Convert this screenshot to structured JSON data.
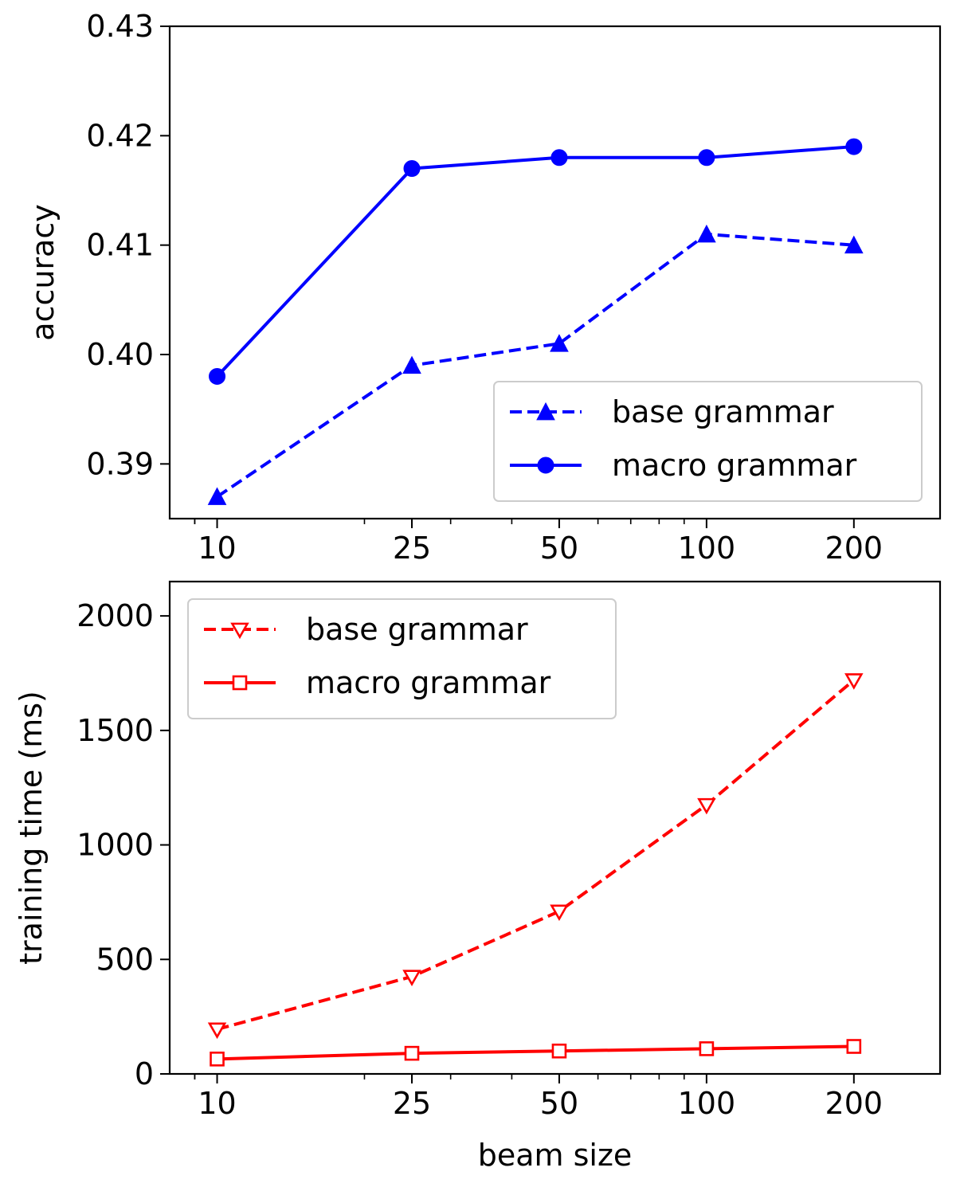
{
  "chart_data": [
    {
      "type": "line",
      "xscale": "log",
      "x": [
        10,
        25,
        50,
        100,
        200
      ],
      "xtick_labels": [
        "10",
        "25",
        "50",
        "100",
        "200"
      ],
      "xlim": [
        8,
        300
      ],
      "ylim": [
        0.385,
        0.43
      ],
      "yticks": [
        0.39,
        0.4,
        0.41,
        0.42,
        0.43
      ],
      "ytick_labels": [
        "0.39",
        "0.40",
        "0.41",
        "0.42",
        "0.43"
      ],
      "xlabel": "",
      "ylabel": "accuracy",
      "legend_position": "lower-right",
      "series": [
        {
          "name": "base grammar",
          "values": [
            0.387,
            0.399,
            0.401,
            0.411,
            0.41
          ],
          "color": "#0000ff",
          "linestyle": "dashed",
          "marker": "triangle-up-filled"
        },
        {
          "name": "macro grammar",
          "values": [
            0.398,
            0.417,
            0.418,
            0.418,
            0.419
          ],
          "color": "#0000ff",
          "linestyle": "solid",
          "marker": "circle-filled"
        }
      ]
    },
    {
      "type": "line",
      "xscale": "log",
      "x": [
        10,
        25,
        50,
        100,
        200
      ],
      "xtick_labels": [
        "10",
        "25",
        "50",
        "100",
        "200"
      ],
      "xlim": [
        8,
        300
      ],
      "ylim": [
        0,
        2150
      ],
      "yticks": [
        0,
        500,
        1000,
        1500,
        2000
      ],
      "ytick_labels": [
        "0",
        "500",
        "1000",
        "1500",
        "2000"
      ],
      "xlabel": "beam size",
      "ylabel": "training time (ms)",
      "legend_position": "top-left",
      "series": [
        {
          "name": "base grammar",
          "values": [
            195,
            425,
            710,
            1175,
            1720
          ],
          "color": "#ff0000",
          "linestyle": "dashed",
          "marker": "triangle-down-open"
        },
        {
          "name": "macro grammar",
          "values": [
            65,
            90,
            100,
            110,
            120
          ],
          "color": "#ff0000",
          "linestyle": "solid",
          "marker": "square-open"
        }
      ]
    }
  ]
}
